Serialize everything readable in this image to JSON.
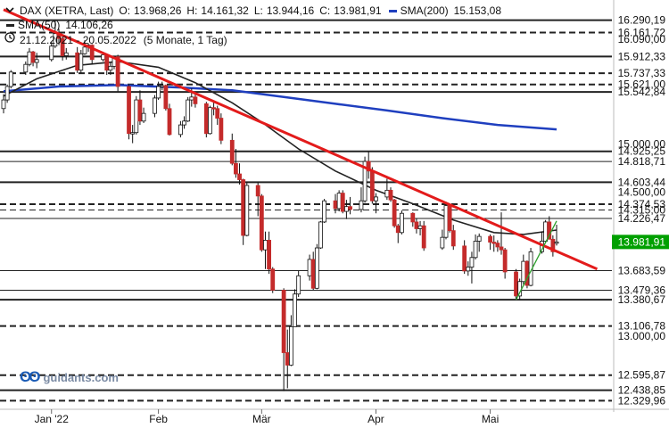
{
  "legend": {
    "instrument": "DAX (XETRA, Last)",
    "open_label": "O:",
    "open_value": "13.968,26",
    "high_label": "H:",
    "high_value": "14.161,32",
    "low_label": "L:",
    "low_value": "13.944,16",
    "close_label": "C:",
    "close_value": "13.981,91",
    "sma200_label": "SMA(200)",
    "sma200_value": "15.153,08",
    "sma50_label": "SMA(50)",
    "sma50_value": "14.106,26",
    "period": "21.12.2021 - 20.05.2022",
    "period_detail": "(5 Monate, 1 Tag)",
    "clock_icon": "clock-icon"
  },
  "watermark": {
    "logo": "ʘʘ",
    "text": "guidants.com"
  },
  "colors": {
    "candle": "#c42b2b",
    "sma50": "#222222",
    "sma200": "#1f3fbf",
    "trend": "#e31b1b",
    "support_trend": "#2ca02c",
    "last_price_bg": "#00a000"
  },
  "chart_data": {
    "type": "candlestick",
    "title": "DAX (XETRA, Last)",
    "y_range": [
      12250,
      16370
    ],
    "x_range": [
      "2021-12-21",
      "2022-05-20"
    ],
    "x_ticks": [
      {
        "label": "Jan '22",
        "date": "2022-01-03"
      },
      {
        "label": "Feb",
        "date": "2022-02-01"
      },
      {
        "label": "Mär",
        "date": "2022-03-01"
      },
      {
        "label": "Apr",
        "date": "2022-04-01"
      },
      {
        "label": "Mai",
        "date": "2022-05-02"
      }
    ],
    "horizontal_levels": [
      {
        "value": 16290.19,
        "label": "16.290,19",
        "style": "solid",
        "weight": "bold"
      },
      {
        "value": 16161.72,
        "label": "16.161,72",
        "style": "dashed",
        "weight": "bold"
      },
      {
        "value": 16090.0,
        "label": "16.090,00",
        "style": "none",
        "weight": "normal"
      },
      {
        "value": 15912.33,
        "label": "15.912,33",
        "style": "solid",
        "weight": "bold"
      },
      {
        "value": 15737.33,
        "label": "15.737,33",
        "style": "dashed",
        "weight": "bold"
      },
      {
        "value": 15621.0,
        "label": "15.621,00",
        "style": "dashed",
        "weight": "bold"
      },
      {
        "value": 15542.84,
        "label": "15.542,84",
        "style": "solid",
        "weight": "bold"
      },
      {
        "value": 15000.0,
        "label": "15.000,00",
        "style": "none",
        "weight": "normal"
      },
      {
        "value": 14925.25,
        "label": "14.925,25",
        "style": "solid",
        "weight": "bold"
      },
      {
        "value": 14818.71,
        "label": "14.818,71",
        "style": "solid",
        "weight": "normal"
      },
      {
        "value": 14603.44,
        "label": "14.603,44",
        "style": "solid",
        "weight": "bold"
      },
      {
        "value": 14500.0,
        "label": "14.500,00",
        "style": "none",
        "weight": "normal"
      },
      {
        "value": 14374.53,
        "label": "14.374,53",
        "style": "dashed",
        "weight": "bold"
      },
      {
        "value": 14315.0,
        "label": "14.315,00",
        "style": "dashed",
        "weight": "normal"
      },
      {
        "value": 14226.47,
        "label": "14.226,47",
        "style": "solid",
        "weight": "normal"
      },
      {
        "value": 13683.59,
        "label": "13.683,59",
        "style": "solid",
        "weight": "normal"
      },
      {
        "value": 13479.36,
        "label": "13.479,36",
        "style": "solid",
        "weight": "normal"
      },
      {
        "value": 13380.67,
        "label": "13.380,67",
        "style": "solid",
        "weight": "bold"
      },
      {
        "value": 13106.78,
        "label": "13.106,78",
        "style": "dashed",
        "weight": "bold"
      },
      {
        "value": 13000.0,
        "label": "13.000,00",
        "style": "none",
        "weight": "normal"
      },
      {
        "value": 12595.87,
        "label": "12.595,87",
        "style": "dashed",
        "weight": "bold"
      },
      {
        "value": 12438.85,
        "label": "12.438,85",
        "style": "solid",
        "weight": "bold"
      },
      {
        "value": 12329.96,
        "label": "12.329,96",
        "style": "dashed",
        "weight": "bold"
      }
    ],
    "last_price": {
      "value": 13981.91,
      "label": "13.981,91"
    },
    "candles": [
      {
        "date": "2021-12-21",
        "o": 15370,
        "h": 15520,
        "l": 15320,
        "c": 15460
      },
      {
        "date": "2021-12-22",
        "o": 15460,
        "h": 15620,
        "l": 15430,
        "c": 15600
      },
      {
        "date": "2021-12-23",
        "o": 15600,
        "h": 15770,
        "l": 15580,
        "c": 15750
      },
      {
        "date": "2021-12-27",
        "o": 15750,
        "h": 15860,
        "l": 15720,
        "c": 15830
      },
      {
        "date": "2021-12-28",
        "o": 15830,
        "h": 16000,
        "l": 15810,
        "c": 15960
      },
      {
        "date": "2021-12-29",
        "o": 15960,
        "h": 15970,
        "l": 15810,
        "c": 15850
      },
      {
        "date": "2021-12-30",
        "o": 15850,
        "h": 15950,
        "l": 15790,
        "c": 15880
      },
      {
        "date": "2022-01-03",
        "o": 15880,
        "h": 16060,
        "l": 15860,
        "c": 16020
      },
      {
        "date": "2022-01-04",
        "o": 16020,
        "h": 16290,
        "l": 16000,
        "c": 16150
      },
      {
        "date": "2022-01-05",
        "o": 16150,
        "h": 16200,
        "l": 16030,
        "c": 16100
      },
      {
        "date": "2022-01-06",
        "o": 16100,
        "h": 16110,
        "l": 15870,
        "c": 15920
      },
      {
        "date": "2022-01-07",
        "o": 15920,
        "h": 16000,
        "l": 15880,
        "c": 15950
      },
      {
        "date": "2022-01-10",
        "o": 15950,
        "h": 16010,
        "l": 15740,
        "c": 15770
      },
      {
        "date": "2022-01-11",
        "o": 15770,
        "h": 15980,
        "l": 15740,
        "c": 15940
      },
      {
        "date": "2022-01-12",
        "o": 15940,
        "h": 16080,
        "l": 15930,
        "c": 16010
      },
      {
        "date": "2022-01-13",
        "o": 16010,
        "h": 16050,
        "l": 15960,
        "c": 16030
      },
      {
        "date": "2022-01-14",
        "o": 16030,
        "h": 16040,
        "l": 15830,
        "c": 15880
      },
      {
        "date": "2022-01-17",
        "o": 15880,
        "h": 15960,
        "l": 15860,
        "c": 15930
      },
      {
        "date": "2022-01-18",
        "o": 15930,
        "h": 15940,
        "l": 15720,
        "c": 15770
      },
      {
        "date": "2022-01-19",
        "o": 15770,
        "h": 15850,
        "l": 15720,
        "c": 15810
      },
      {
        "date": "2022-01-20",
        "o": 15810,
        "h": 15920,
        "l": 15780,
        "c": 15910
      },
      {
        "date": "2022-01-21",
        "o": 15910,
        "h": 15930,
        "l": 15550,
        "c": 15600
      },
      {
        "date": "2022-01-24",
        "o": 15600,
        "h": 15620,
        "l": 15050,
        "c": 15110
      },
      {
        "date": "2022-01-25",
        "o": 15110,
        "h": 15200,
        "l": 15010,
        "c": 15120
      },
      {
        "date": "2022-01-26",
        "o": 15120,
        "h": 15500,
        "l": 15100,
        "c": 15460
      },
      {
        "date": "2022-01-27",
        "o": 15460,
        "h": 15560,
        "l": 15200,
        "c": 15240
      },
      {
        "date": "2022-01-28",
        "o": 15240,
        "h": 15380,
        "l": 15220,
        "c": 15320
      },
      {
        "date": "2022-01-31",
        "o": 15320,
        "h": 15510,
        "l": 15280,
        "c": 15480
      },
      {
        "date": "2022-02-01",
        "o": 15480,
        "h": 15650,
        "l": 15460,
        "c": 15600
      },
      {
        "date": "2022-02-02",
        "o": 15600,
        "h": 15650,
        "l": 15560,
        "c": 15610
      },
      {
        "date": "2022-02-03",
        "o": 15610,
        "h": 15620,
        "l": 15350,
        "c": 15370
      },
      {
        "date": "2022-02-04",
        "o": 15370,
        "h": 15420,
        "l": 15090,
        "c": 15100
      },
      {
        "date": "2022-02-07",
        "o": 15100,
        "h": 15240,
        "l": 15070,
        "c": 15200
      },
      {
        "date": "2022-02-08",
        "o": 15200,
        "h": 15290,
        "l": 15160,
        "c": 15240
      },
      {
        "date": "2022-02-09",
        "o": 15240,
        "h": 15490,
        "l": 15230,
        "c": 15460
      },
      {
        "date": "2022-02-10",
        "o": 15460,
        "h": 15580,
        "l": 15390,
        "c": 15490
      },
      {
        "date": "2022-02-11",
        "o": 15490,
        "h": 15530,
        "l": 15380,
        "c": 15420
      },
      {
        "date": "2022-02-14",
        "o": 15420,
        "h": 15440,
        "l": 15070,
        "c": 15110
      },
      {
        "date": "2022-02-15",
        "o": 15110,
        "h": 15400,
        "l": 15100,
        "c": 15380
      },
      {
        "date": "2022-02-16",
        "o": 15380,
        "h": 15440,
        "l": 15300,
        "c": 15370
      },
      {
        "date": "2022-02-17",
        "o": 15370,
        "h": 15400,
        "l": 15200,
        "c": 15270
      },
      {
        "date": "2022-02-18",
        "o": 15270,
        "h": 15320,
        "l": 15000,
        "c": 15040
      },
      {
        "date": "2022-02-21",
        "o": 15040,
        "h": 15110,
        "l": 14780,
        "c": 14800
      },
      {
        "date": "2022-02-22",
        "o": 14800,
        "h": 14950,
        "l": 14650,
        "c": 14690
      },
      {
        "date": "2022-02-23",
        "o": 14690,
        "h": 14800,
        "l": 14580,
        "c": 14630
      },
      {
        "date": "2022-02-24",
        "o": 14630,
        "h": 14640,
        "l": 13950,
        "c": 14050
      },
      {
        "date": "2022-02-25",
        "o": 14050,
        "h": 14600,
        "l": 14040,
        "c": 14570
      },
      {
        "date": "2022-02-28",
        "o": 14570,
        "h": 14600,
        "l": 14250,
        "c": 14460
      },
      {
        "date": "2022-03-01",
        "o": 14460,
        "h": 14480,
        "l": 13880,
        "c": 13900
      },
      {
        "date": "2022-03-02",
        "o": 13900,
        "h": 14090,
        "l": 13700,
        "c": 14000
      },
      {
        "date": "2022-03-03",
        "o": 14000,
        "h": 14090,
        "l": 13650,
        "c": 13700
      },
      {
        "date": "2022-03-04",
        "o": 13700,
        "h": 13720,
        "l": 13450,
        "c": 13480
      },
      {
        "date": "2022-03-07",
        "o": 13480,
        "h": 13500,
        "l": 12430,
        "c": 12830
      },
      {
        "date": "2022-03-08",
        "o": 12830,
        "h": 13070,
        "l": 12460,
        "c": 12700
      },
      {
        "date": "2022-03-09",
        "o": 12700,
        "h": 13220,
        "l": 12690,
        "c": 13100
      },
      {
        "date": "2022-03-10",
        "o": 13100,
        "h": 13490,
        "l": 13100,
        "c": 13440
      },
      {
        "date": "2022-03-11",
        "o": 13440,
        "h": 13680,
        "l": 13410,
        "c": 13630
      },
      {
        "date": "2022-03-14",
        "o": 13630,
        "h": 13850,
        "l": 13580,
        "c": 13800
      },
      {
        "date": "2022-03-15",
        "o": 13800,
        "h": 13880,
        "l": 13480,
        "c": 13500
      },
      {
        "date": "2022-03-16",
        "o": 13500,
        "h": 13960,
        "l": 13490,
        "c": 13920
      },
      {
        "date": "2022-03-17",
        "o": 13920,
        "h": 14200,
        "l": 13910,
        "c": 14190
      },
      {
        "date": "2022-03-18",
        "o": 14190,
        "h": 14430,
        "l": 14180,
        "c": 14410
      },
      {
        "date": "2022-03-21",
        "o": 14410,
        "h": 14480,
        "l": 14280,
        "c": 14330
      },
      {
        "date": "2022-03-22",
        "o": 14330,
        "h": 14520,
        "l": 14300,
        "c": 14490
      },
      {
        "date": "2022-03-23",
        "o": 14490,
        "h": 14520,
        "l": 14280,
        "c": 14300
      },
      {
        "date": "2022-03-24",
        "o": 14300,
        "h": 14420,
        "l": 14220,
        "c": 14350
      },
      {
        "date": "2022-03-25",
        "o": 14350,
        "h": 14450,
        "l": 14270,
        "c": 14320
      },
      {
        "date": "2022-03-28",
        "o": 14320,
        "h": 14550,
        "l": 14290,
        "c": 14410
      },
      {
        "date": "2022-03-29",
        "o": 14410,
        "h": 14870,
        "l": 14390,
        "c": 14820
      },
      {
        "date": "2022-03-30",
        "o": 14820,
        "h": 14920,
        "l": 14640,
        "c": 14720
      },
      {
        "date": "2022-03-31",
        "o": 14720,
        "h": 14760,
        "l": 14380,
        "c": 14410
      },
      {
        "date": "2022-04-01",
        "o": 14410,
        "h": 14490,
        "l": 14280,
        "c": 14450
      },
      {
        "date": "2022-04-04",
        "o": 14450,
        "h": 14640,
        "l": 14420,
        "c": 14520
      },
      {
        "date": "2022-04-05",
        "o": 14520,
        "h": 14550,
        "l": 14400,
        "c": 14420
      },
      {
        "date": "2022-04-06",
        "o": 14420,
        "h": 14430,
        "l": 14130,
        "c": 14150
      },
      {
        "date": "2022-04-07",
        "o": 14150,
        "h": 14170,
        "l": 13970,
        "c": 14080
      },
      {
        "date": "2022-04-08",
        "o": 14080,
        "h": 14310,
        "l": 14060,
        "c": 14280
      },
      {
        "date": "2022-04-11",
        "o": 14280,
        "h": 14290,
        "l": 14140,
        "c": 14190
      },
      {
        "date": "2022-04-12",
        "o": 14190,
        "h": 14230,
        "l": 14070,
        "c": 14120
      },
      {
        "date": "2022-04-13",
        "o": 14120,
        "h": 14200,
        "l": 14050,
        "c": 14150
      },
      {
        "date": "2022-04-14",
        "o": 14150,
        "h": 14200,
        "l": 13890,
        "c": 13920
      },
      {
        "date": "2022-04-19",
        "o": 13920,
        "h": 14110,
        "l": 13900,
        "c": 14030
      },
      {
        "date": "2022-04-20",
        "o": 14030,
        "h": 14400,
        "l": 14010,
        "c": 14360
      },
      {
        "date": "2022-04-21",
        "o": 14360,
        "h": 14380,
        "l": 14080,
        "c": 14100
      },
      {
        "date": "2022-04-22",
        "o": 14100,
        "h": 14160,
        "l": 13900,
        "c": 13940
      },
      {
        "date": "2022-04-25",
        "o": 13940,
        "h": 14000,
        "l": 13650,
        "c": 13680
      },
      {
        "date": "2022-04-26",
        "o": 13680,
        "h": 13780,
        "l": 13630,
        "c": 13720
      },
      {
        "date": "2022-04-27",
        "o": 13720,
        "h": 13880,
        "l": 13550,
        "c": 13820
      },
      {
        "date": "2022-04-28",
        "o": 13820,
        "h": 14060,
        "l": 13800,
        "c": 13990
      },
      {
        "date": "2022-04-29",
        "o": 13990,
        "h": 14070,
        "l": 13880,
        "c": 14040
      },
      {
        "date": "2022-05-02",
        "o": 14040,
        "h": 14060,
        "l": 13900,
        "c": 13980
      },
      {
        "date": "2022-05-03",
        "o": 13980,
        "h": 14050,
        "l": 13880,
        "c": 13970
      },
      {
        "date": "2022-05-04",
        "o": 13970,
        "h": 14000,
        "l": 13880,
        "c": 13930
      },
      {
        "date": "2022-05-05",
        "o": 13930,
        "h": 14290,
        "l": 13850,
        "c": 13900
      },
      {
        "date": "2022-05-06",
        "o": 13900,
        "h": 13920,
        "l": 13600,
        "c": 13670
      },
      {
        "date": "2022-05-09",
        "o": 13670,
        "h": 13700,
        "l": 13390,
        "c": 13420
      },
      {
        "date": "2022-05-10",
        "o": 13420,
        "h": 13600,
        "l": 13380,
        "c": 13570
      },
      {
        "date": "2022-05-11",
        "o": 13570,
        "h": 13850,
        "l": 13540,
        "c": 13780
      },
      {
        "date": "2022-05-12",
        "o": 13780,
        "h": 13790,
        "l": 13500,
        "c": 13530
      },
      {
        "date": "2022-05-13",
        "o": 13530,
        "h": 13920,
        "l": 13520,
        "c": 13880
      },
      {
        "date": "2022-05-16",
        "o": 13880,
        "h": 14090,
        "l": 13860,
        "c": 13990
      },
      {
        "date": "2022-05-17",
        "o": 13990,
        "h": 14210,
        "l": 13980,
        "c": 14190
      },
      {
        "date": "2022-05-18",
        "o": 14190,
        "h": 14250,
        "l": 14020,
        "c": 14010
      },
      {
        "date": "2022-05-19",
        "o": 14010,
        "h": 14050,
        "l": 13830,
        "c": 13880
      },
      {
        "date": "2022-05-20",
        "o": 13968.26,
        "h": 14161.32,
        "l": 13944.16,
        "c": 13981.91
      }
    ],
    "sma50": [
      {
        "date": "2021-12-21",
        "v": 15500
      },
      {
        "date": "2021-12-30",
        "v": 15680
      },
      {
        "date": "2022-01-10",
        "v": 15820
      },
      {
        "date": "2022-01-21",
        "v": 15860
      },
      {
        "date": "2022-02-01",
        "v": 15800
      },
      {
        "date": "2022-02-11",
        "v": 15640
      },
      {
        "date": "2022-02-21",
        "v": 15430
      },
      {
        "date": "2022-03-01",
        "v": 15230
      },
      {
        "date": "2022-03-11",
        "v": 14950
      },
      {
        "date": "2022-03-21",
        "v": 14720
      },
      {
        "date": "2022-04-01",
        "v": 14520
      },
      {
        "date": "2022-04-11",
        "v": 14380
      },
      {
        "date": "2022-04-22",
        "v": 14210
      },
      {
        "date": "2022-05-03",
        "v": 14080
      },
      {
        "date": "2022-05-11",
        "v": 14060
      },
      {
        "date": "2022-05-20",
        "v": 14106.26
      }
    ],
    "sma200": [
      {
        "date": "2021-12-21",
        "v": 15550
      },
      {
        "date": "2022-01-05",
        "v": 15600
      },
      {
        "date": "2022-01-21",
        "v": 15615
      },
      {
        "date": "2022-02-07",
        "v": 15590
      },
      {
        "date": "2022-02-21",
        "v": 15560
      },
      {
        "date": "2022-03-07",
        "v": 15490
      },
      {
        "date": "2022-03-21",
        "v": 15420
      },
      {
        "date": "2022-04-04",
        "v": 15350
      },
      {
        "date": "2022-04-19",
        "v": 15270
      },
      {
        "date": "2022-05-04",
        "v": 15200
      },
      {
        "date": "2022-05-20",
        "v": 15153.08
      }
    ],
    "trend_lines": [
      {
        "name": "resistance",
        "from": {
          "date": "2021-12-21",
          "v": 16400
        },
        "to": {
          "date": "2022-05-31",
          "v": 13700
        }
      },
      {
        "name": "support",
        "from": {
          "date": "2022-05-09",
          "v": 13380
        },
        "to": {
          "date": "2022-05-20",
          "v": 14200
        }
      }
    ]
  }
}
